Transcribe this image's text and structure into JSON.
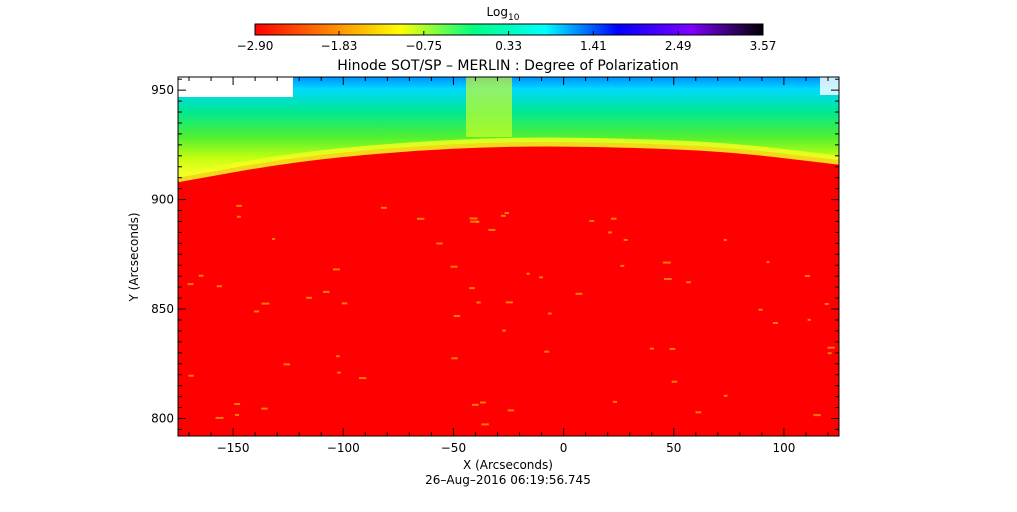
{
  "chart_data": {
    "type": "heatmap",
    "title": "Hinode SOT/SP – MERLIN : Degree of Polarization",
    "xlabel": "X (Arcseconds)",
    "ylabel": "Y (Arcseconds)",
    "timestamp": "26–Aug–2016 06:19:56.745",
    "xlim": [
      -175,
      125
    ],
    "ylim": [
      792,
      956
    ],
    "x_ticks": [
      -150,
      -100,
      -50,
      0,
      50,
      100
    ],
    "x_tick_labels": [
      "−150",
      "−100",
      "−50",
      "0",
      "50",
      "100"
    ],
    "y_ticks": [
      800,
      850,
      900,
      950
    ],
    "y_tick_labels": [
      "800",
      "850",
      "900",
      "950"
    ],
    "colorbar": {
      "label_base": "Log",
      "label_sub": "10",
      "range": [
        -2.9,
        3.57
      ],
      "ticks": [
        -2.9,
        -1.83,
        -0.75,
        0.33,
        1.41,
        2.49,
        3.57
      ],
      "tick_labels": [
        "−2.90",
        "−1.83",
        "−0.75",
        "0.33",
        "1.41",
        "2.49",
        "3.57"
      ],
      "colors": [
        "#ff0000",
        "#ff8000",
        "#ffff00",
        "#00ff80",
        "#00ffff",
        "#0000ff",
        "#8000ff",
        "#000000"
      ]
    },
    "limb_y": [
      {
        "x": -175,
        "y": 910
      },
      {
        "x": -125,
        "y": 919
      },
      {
        "x": -75,
        "y": 924
      },
      {
        "x": -25,
        "y": 926.5
      },
      {
        "x": 25,
        "y": 926
      },
      {
        "x": 75,
        "y": 924
      },
      {
        "x": 125,
        "y": 918
      }
    ],
    "regions": [
      {
        "name": "solar-disk",
        "value": -2.9,
        "color": "#ff0000"
      },
      {
        "name": "limb-band",
        "value": -1.0,
        "color": "#e8ff1a"
      },
      {
        "name": "off-limb",
        "value": 0.2,
        "color": "#20e070"
      },
      {
        "name": "far-corona",
        "value": 1.3,
        "color": "#00d8ff"
      }
    ]
  }
}
